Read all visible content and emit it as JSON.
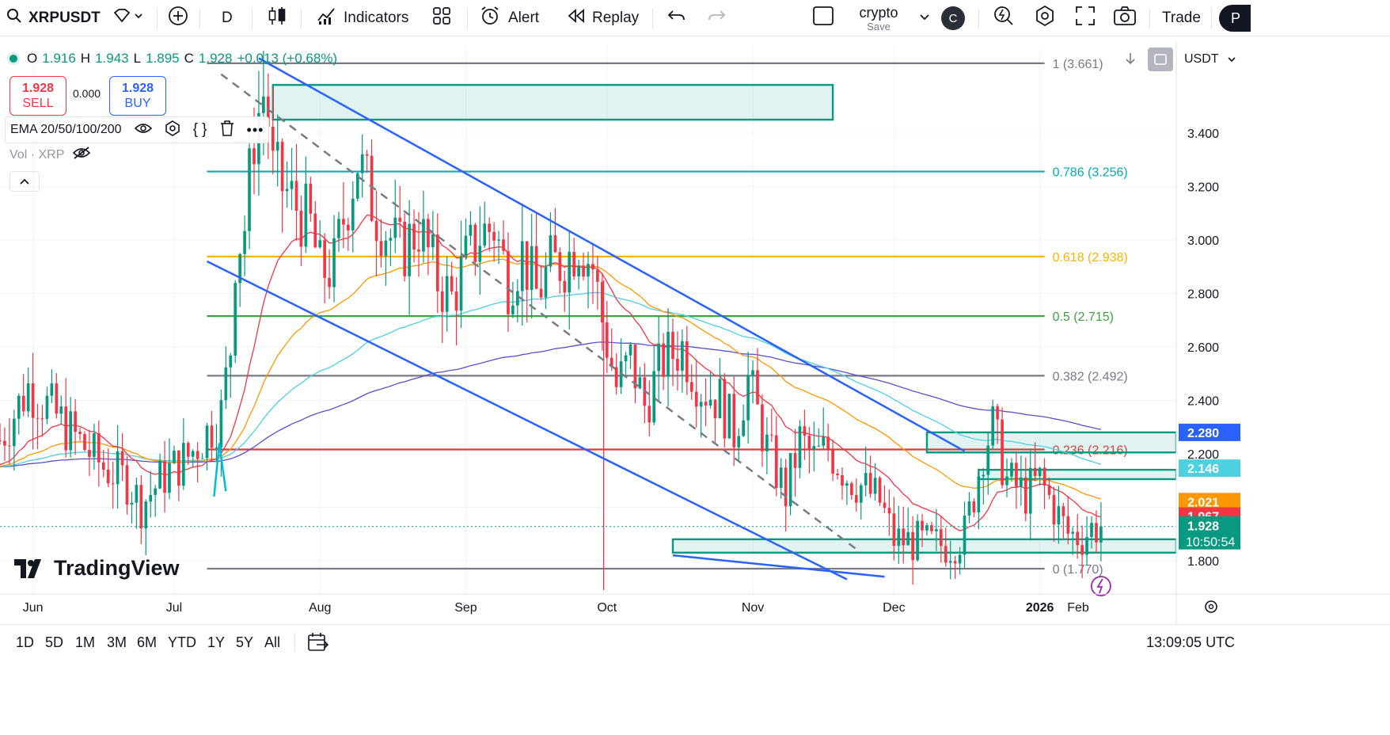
{
  "toolbar": {
    "symbol": "XRPUSDT",
    "interval": "D",
    "indicators": "Indicators",
    "alert": "Alert",
    "replay": "Replay",
    "layout_name": "crypto",
    "layout_save": "Save",
    "avatar": "C",
    "trade": "Trade",
    "publish": "P"
  },
  "legend": {
    "o_label": "O",
    "o": "1.916",
    "h_label": "H",
    "h": "1.943",
    "l_label": "L",
    "l": "1.895",
    "c_label": "C",
    "c": "1.928",
    "change": "+0.013 (+0.68%)"
  },
  "trade": {
    "sell_price": "1.928",
    "sell_label": "SELL",
    "spread": "0.000",
    "buy_price": "1.928",
    "buy_label": "BUY"
  },
  "indicator": {
    "name": "EMA 20/50/100/200",
    "volume": "Vol · XRP"
  },
  "currency": "USDT",
  "watermark": "TradingView",
  "bottom": {
    "ranges": [
      "1D",
      "5D",
      "1M",
      "3M",
      "6M",
      "YTD",
      "1Y",
      "5Y",
      "All"
    ],
    "clock": "13:09:05 UTC"
  },
  "colors": {
    "up": "#089981",
    "down": "#f23645",
    "ema20": "#f23645",
    "ema50": "#ff9800",
    "ema100": "#4dd0e1",
    "ema200": "#5b4fce",
    "channel": "#2962ff",
    "zone": "#089981"
  },
  "chart_data": {
    "type": "candlestick",
    "symbol": "XRPUSDT",
    "timeframe": "1D",
    "y_axis": {
      "ticks": [
        1.8,
        2.0,
        2.2,
        2.4,
        2.6,
        2.8,
        3.0,
        3.2,
        3.4
      ],
      "ylim": [
        1.69,
        3.72
      ]
    },
    "x_axis": {
      "ticks": [
        "Jun",
        "Jul",
        "Aug",
        "Sep",
        "Oct",
        "Nov",
        "Dec",
        "2026",
        "Feb"
      ]
    },
    "x_range_days_from_may25_2025": [
      0,
      250
    ],
    "price_path_start": "2025-05-25",
    "price_path": [
      [
        0,
        2.25
      ],
      [
        6,
        2.45
      ],
      [
        10,
        2.38
      ],
      [
        15,
        2.28
      ],
      [
        22,
        2.15
      ],
      [
        27,
        2.1
      ],
      [
        30,
        2.01
      ],
      [
        35,
        2.12
      ],
      [
        40,
        2.19
      ],
      [
        44,
        2.28
      ],
      [
        47,
        2.35
      ],
      [
        49,
        2.6
      ],
      [
        50,
        2.95
      ],
      [
        52,
        3.05
      ],
      [
        54,
        3.4
      ],
      [
        56,
        3.55
      ],
      [
        57,
        3.45
      ],
      [
        58,
        3.25
      ],
      [
        62,
        3.15
      ],
      [
        66,
        3.05
      ],
      [
        68,
        2.88
      ],
      [
        71,
        2.9
      ],
      [
        73,
        3.08
      ],
      [
        76,
        3.3
      ],
      [
        80,
        3.1
      ],
      [
        85,
        2.95
      ],
      [
        89,
        3.05
      ],
      [
        93,
        2.85
      ],
      [
        96,
        2.78
      ],
      [
        99,
        2.92
      ],
      [
        102,
        3.02
      ],
      [
        105,
        3.05
      ],
      [
        108,
        2.85
      ],
      [
        111,
        2.95
      ],
      [
        114,
        2.8
      ],
      [
        117,
        2.9
      ],
      [
        120,
        2.92
      ],
      [
        123,
        3.0
      ],
      [
        126,
        2.9
      ],
      [
        128,
        2.7
      ],
      [
        131,
        2.45
      ],
      [
        134,
        2.55
      ],
      [
        137,
        2.38
      ],
      [
        141,
        2.55
      ],
      [
        145,
        2.6
      ],
      [
        149,
        2.45
      ],
      [
        153,
        2.4
      ],
      [
        156,
        2.28
      ],
      [
        159,
        2.48
      ],
      [
        163,
        2.22
      ],
      [
        167,
        2.05
      ],
      [
        170,
        2.25
      ],
      [
        173,
        2.18
      ],
      [
        176,
        2.22
      ],
      [
        180,
        2.12
      ],
      [
        183,
        2.08
      ],
      [
        187,
        2.02
      ],
      [
        190,
        1.88
      ],
      [
        194,
        1.87
      ],
      [
        198,
        1.86
      ],
      [
        202,
        1.86
      ],
      [
        205,
        1.9
      ],
      [
        207,
        2.05
      ],
      [
        209,
        2.22
      ],
      [
        211,
        2.3
      ],
      [
        214,
        2.1
      ],
      [
        218,
        2.05
      ],
      [
        221,
        2.1
      ],
      [
        224,
        2.0
      ],
      [
        227,
        1.9
      ],
      [
        230,
        1.89
      ],
      [
        232,
        1.92
      ],
      [
        234,
        1.93
      ]
    ],
    "last_close": 1.928,
    "current_price_label": "1.928",
    "countdown": "10:50:54",
    "price_labels": [
      {
        "value": 2.28,
        "text": "2.280",
        "color": "#2962ff"
      },
      {
        "value": 2.146,
        "text": "2.146",
        "color": "#4dd0e1"
      },
      {
        "value": 2.021,
        "text": "2.021",
        "color": "#ff9800"
      },
      {
        "value": 1.967,
        "text": "1.967",
        "color": "#f23645"
      }
    ],
    "fibonacci": [
      {
        "level": "1",
        "price": 3.661,
        "label": "1 (3.661)",
        "color": "#787b86"
      },
      {
        "level": "0.786",
        "price": 3.256,
        "label": "0.786 (3.256)",
        "color": "#00acc1"
      },
      {
        "level": "0.618",
        "price": 2.938,
        "label": "0.618 (2.938)",
        "color": "#f7b500"
      },
      {
        "level": "0.5",
        "price": 2.715,
        "label": "0.5 (2.715)",
        "color": "#43a047"
      },
      {
        "level": "0.382",
        "price": 2.492,
        "label": "0.382 (2.492)",
        "color": "#787b86"
      },
      {
        "level": "0.236",
        "price": 2.216,
        "label": "0.236 (2.216)",
        "color": "#e53935"
      },
      {
        "level": "0",
        "price": 1.77,
        "label": "0 (1.770)",
        "color": "#787b86"
      }
    ],
    "zones": [
      {
        "from_day": 58,
        "to_day": 177,
        "top": 3.58,
        "bottom": 3.45
      },
      {
        "from_day": 143,
        "to_day": 250,
        "top": 1.88,
        "bottom": 1.83
      },
      {
        "from_day": 197,
        "to_day": 250,
        "top": 2.28,
        "bottom": 2.205
      },
      {
        "from_day": 208,
        "to_day": 250,
        "top": 2.14,
        "bottom": 2.105
      }
    ],
    "trendlines": [
      {
        "x1": 55,
        "y1": 3.68,
        "x2": 205,
        "y2": 2.21,
        "color": "#2962ff",
        "width": 2.5
      },
      {
        "x1": 44,
        "y1": 2.92,
        "x2": 180,
        "y2": 1.73,
        "color": "#2962ff",
        "width": 2.5
      },
      {
        "x1": 143,
        "y1": 1.82,
        "x2": 188,
        "y2": 1.74,
        "color": "#2962ff",
        "width": 2.5
      },
      {
        "x1": 47,
        "y1": 3.62,
        "x2": 183,
        "y2": 1.83,
        "color": "#787b86",
        "width": 2.5,
        "dash": true
      }
    ]
  }
}
